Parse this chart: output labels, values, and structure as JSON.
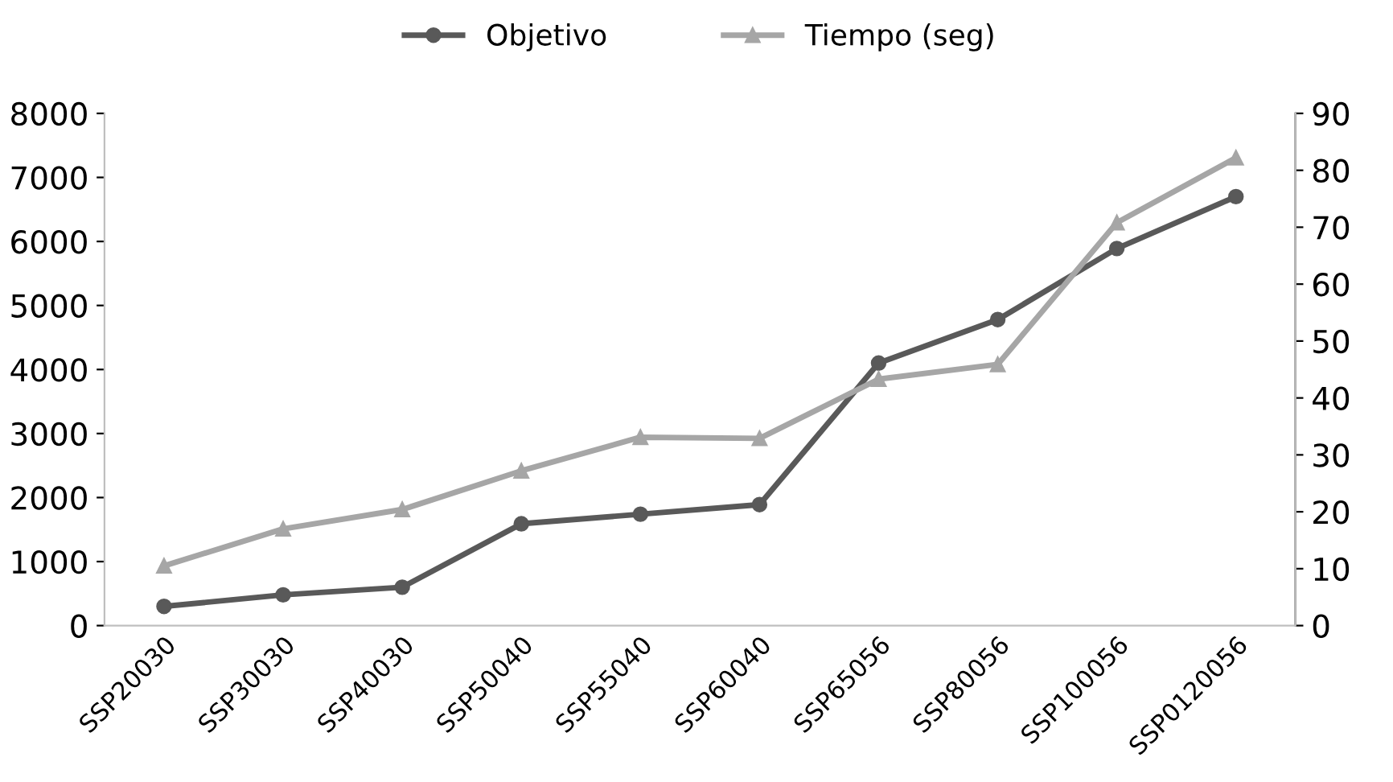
{
  "chart_data": {
    "type": "line",
    "categories": [
      "SSP20030",
      "SSP30030",
      "SSP40030",
      "SSP50040",
      "SSP55040",
      "SSP60040",
      "SSP65056",
      "SSP80056",
      "SSP100056",
      "SSP0120056"
    ],
    "series": [
      {
        "name": "Objetivo",
        "color": "#595959",
        "marker": "circle",
        "values": [
          300,
          480,
          600,
          1590,
          1740,
          1890,
          4100,
          4780,
          5890,
          6700
        ]
      },
      {
        "name": "Tiempo (seg)",
        "color": "#a6a6a6",
        "marker": "triangle",
        "axis": "y2",
        "values": [
          10.5,
          17,
          20.4,
          27.2,
          33.1,
          32.9,
          43.3,
          45.9,
          70.8,
          82.2
        ]
      }
    ],
    "ylim": [
      0,
      8000
    ],
    "yticks": [
      0,
      1000,
      2000,
      3000,
      4000,
      5000,
      6000,
      7000,
      8000
    ],
    "y2lim": [
      0,
      90
    ],
    "y2ticks": [
      0,
      10,
      20,
      30,
      40,
      50,
      60,
      70,
      80,
      90
    ],
    "grid": false,
    "legend": "top"
  }
}
